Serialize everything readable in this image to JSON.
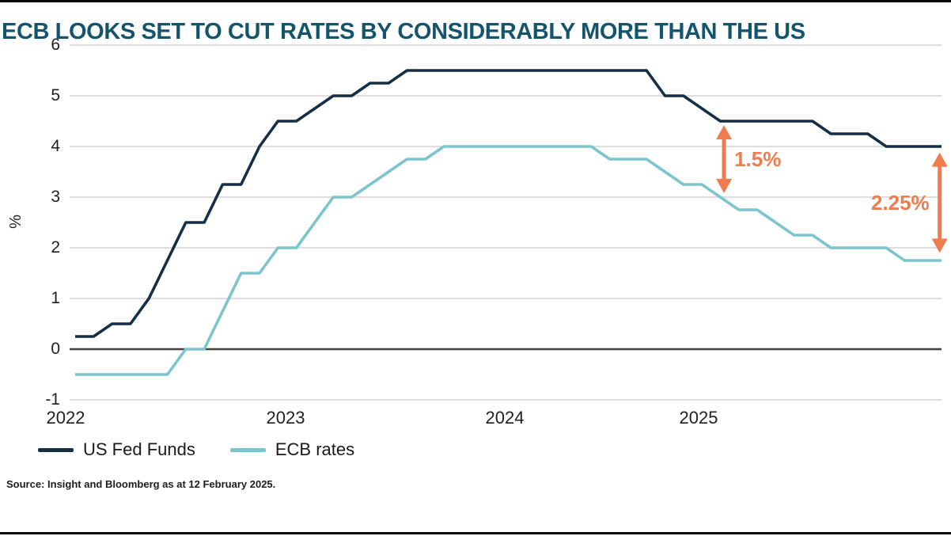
{
  "page": {
    "title": "ECB LOOKS SET TO CUT RATES BY CONSIDERABLY MORE THAN THE US",
    "source": "Source: Insight and Bloomberg as at 12 February 2025."
  },
  "colors": {
    "title": "#14556E",
    "us_line": "#152F47",
    "ecb_line": "#7CC5CC",
    "annotation_orange": "#F07C4E",
    "gridline": "#C9C9C9",
    "zero_line": "#3F3F3F",
    "axis_text": "#1F1F1F",
    "rule": "#0A0A0A"
  },
  "chart_data": {
    "type": "line",
    "title": "ECB LOOKS SET TO CUT RATES BY CONSIDERABLY MORE THAN THE US",
    "xlabel": "",
    "ylabel": "%",
    "ylim": [
      -1,
      6
    ],
    "y_ticks": [
      6,
      5,
      4,
      3,
      2,
      1,
      0,
      -1
    ],
    "x_tick_labels": [
      "2022",
      "2023",
      "2024",
      "2025"
    ],
    "x_unit": "month",
    "x_start": "2022-01",
    "x_end": "2025-12",
    "grid": "horizontal",
    "legend_position": "bottom-left",
    "series": [
      {
        "name": "US Fed Funds",
        "color_key": "us_line",
        "values": [
          0.25,
          0.25,
          0.5,
          0.5,
          1.0,
          1.75,
          2.5,
          2.5,
          3.25,
          3.25,
          4.0,
          4.5,
          4.5,
          4.75,
          5.0,
          5.0,
          5.25,
          5.25,
          5.5,
          5.5,
          5.5,
          5.5,
          5.5,
          5.5,
          5.5,
          5.5,
          5.5,
          5.5,
          5.5,
          5.5,
          5.5,
          5.5,
          5.0,
          5.0,
          4.75,
          4.5,
          4.5,
          4.5,
          4.5,
          4.5,
          4.5,
          4.25,
          4.25,
          4.25,
          4.0,
          4.0,
          4.0,
          4.0
        ]
      },
      {
        "name": "ECB rates",
        "color_key": "ecb_line",
        "values": [
          -0.5,
          -0.5,
          -0.5,
          -0.5,
          -0.5,
          -0.5,
          0.0,
          0.0,
          0.75,
          1.5,
          1.5,
          2.0,
          2.0,
          2.5,
          3.0,
          3.0,
          3.25,
          3.5,
          3.75,
          3.75,
          4.0,
          4.0,
          4.0,
          4.0,
          4.0,
          4.0,
          4.0,
          4.0,
          4.0,
          3.75,
          3.75,
          3.75,
          3.5,
          3.25,
          3.25,
          3.0,
          2.75,
          2.75,
          2.5,
          2.25,
          2.25,
          2.0,
          2.0,
          2.0,
          2.0,
          1.75,
          1.75,
          1.75
        ]
      }
    ],
    "annotations": [
      {
        "label": "1.5%",
        "month_index": 35.2,
        "value_top": 4.42,
        "value_bottom": 3.08,
        "label_side": "right"
      },
      {
        "label": "2.25%",
        "month_index": 46.9,
        "value_top": 3.88,
        "value_bottom": 1.9,
        "label_side": "left"
      }
    ]
  }
}
